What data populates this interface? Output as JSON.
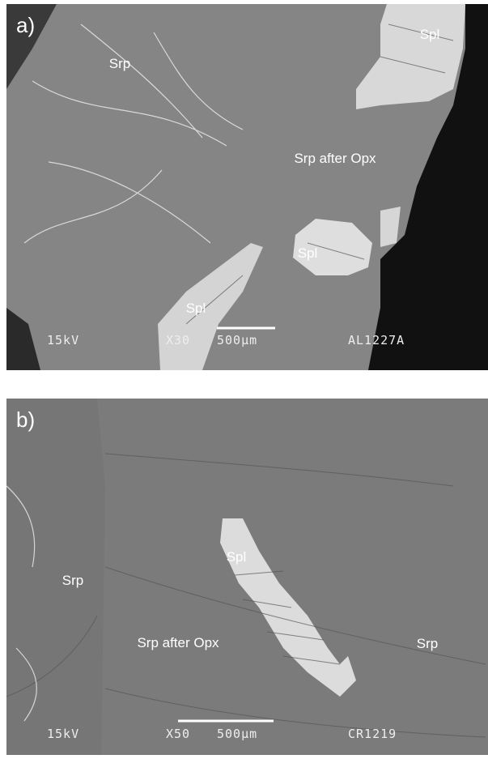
{
  "panels": [
    {
      "label": "a)",
      "annotations": [
        "Srp",
        "Spl",
        "Srp after Opx",
        "Spl",
        "Spl"
      ],
      "footer": {
        "voltage": "15kV",
        "magnification": "X30",
        "scale": "500µm",
        "sample": "AL1227A"
      }
    },
    {
      "label": "b)",
      "annotations": [
        "Spl",
        "Srp",
        "Srp after Opx",
        "Srp"
      ],
      "footer": {
        "voltage": "15kV",
        "magnification": "X50",
        "scale": "500µm",
        "sample": "CR1219"
      }
    }
  ]
}
